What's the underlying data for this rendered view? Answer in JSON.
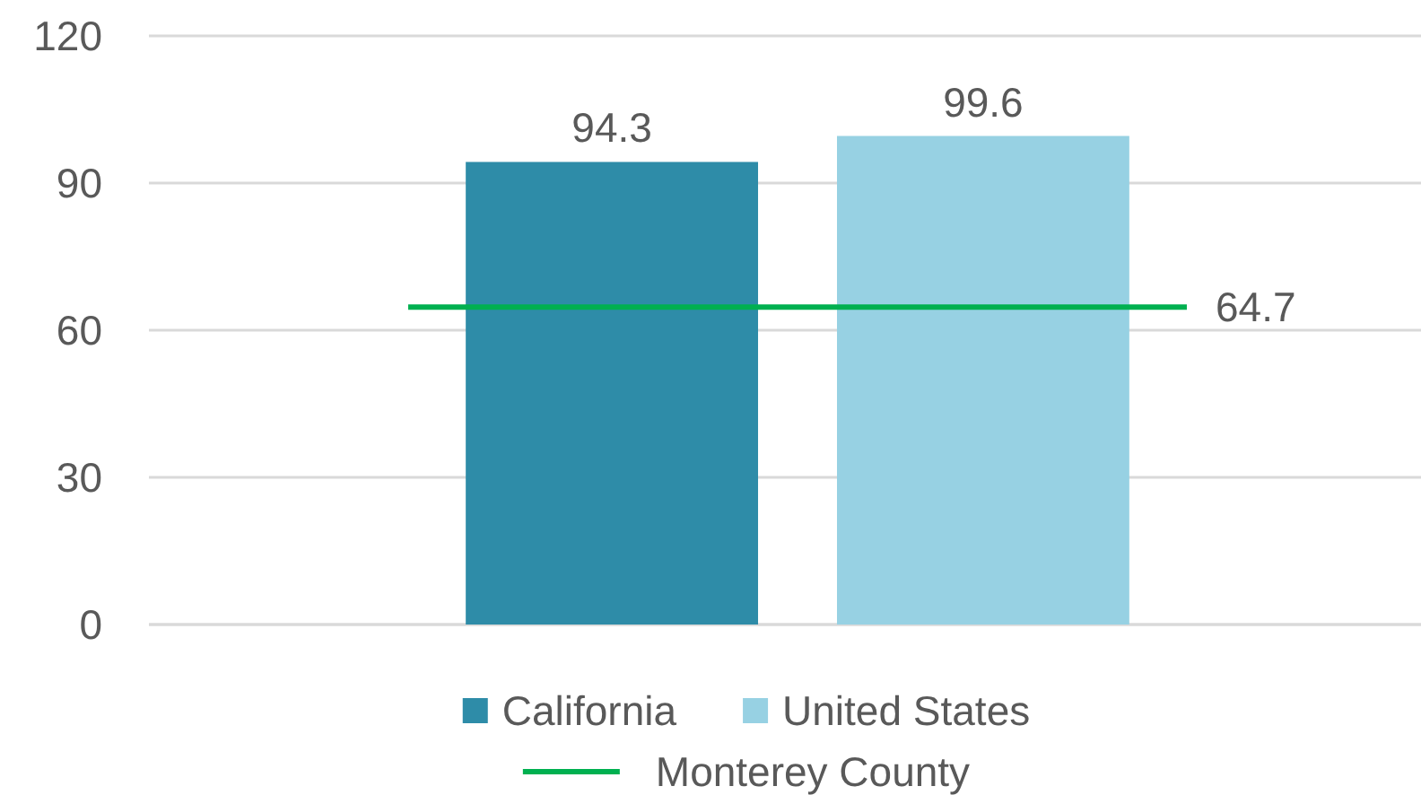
{
  "chart_data": {
    "type": "bar",
    "categories": [
      null
    ],
    "series": [
      {
        "name": "California",
        "color": "#2e8ca8",
        "values": [
          94.3
        ]
      },
      {
        "name": "United States",
        "color": "#97d1e3",
        "values": [
          99.6
        ]
      }
    ],
    "ylim": [
      0,
      120
    ],
    "yticks": [
      0,
      30,
      60,
      90,
      120
    ],
    "grid": "y",
    "legend": "bottom",
    "data_labels": true,
    "ref_lines": [
      {
        "axis": "y",
        "value": 64.7,
        "label": "Monterey County",
        "color": "#00b050"
      }
    ],
    "annotations": [
      "64.7"
    ]
  }
}
